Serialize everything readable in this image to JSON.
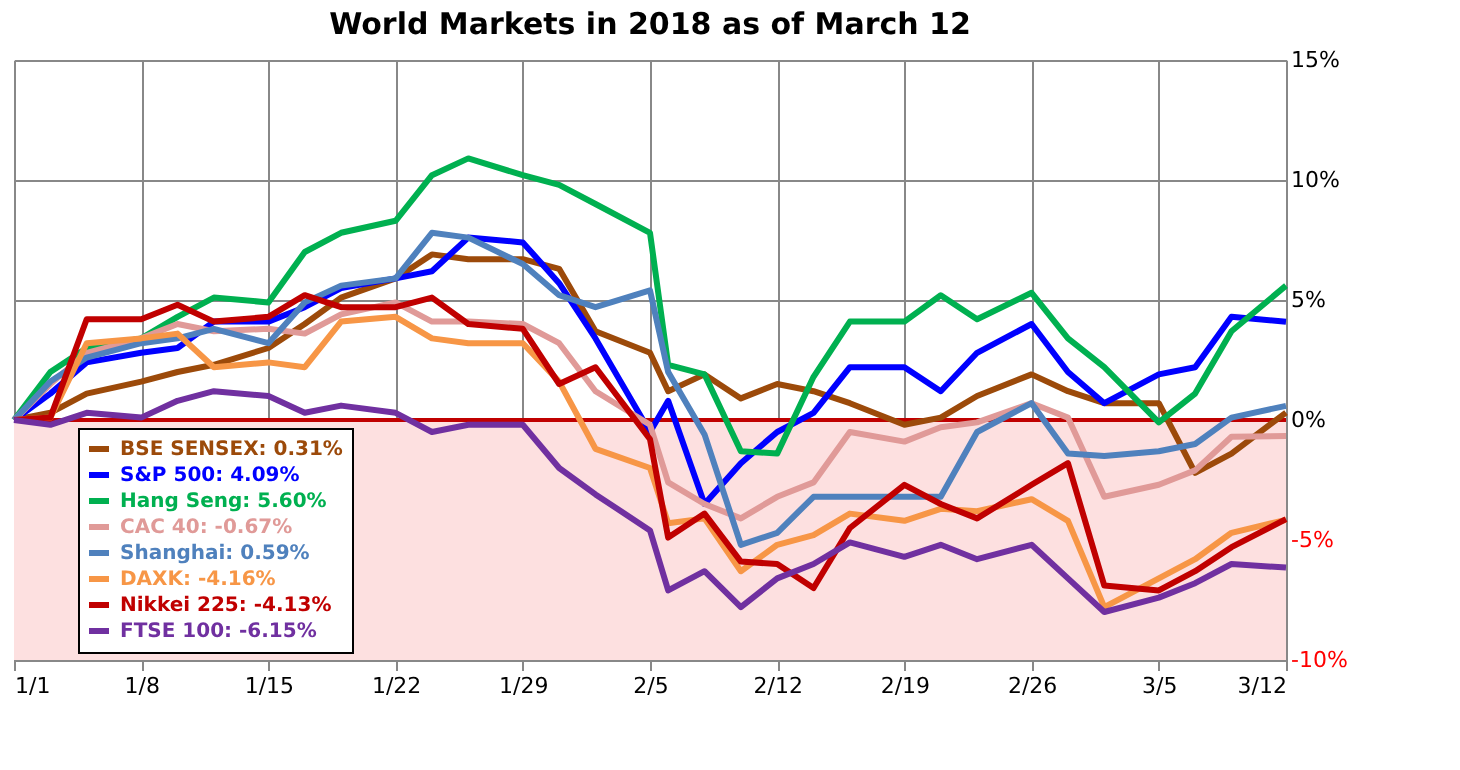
{
  "chart_data": {
    "type": "line",
    "title": "World Markets in 2018 as of March 12",
    "x": [
      "2018-01-01",
      "2018-01-03",
      "2018-01-05",
      "2018-01-08",
      "2018-01-10",
      "2018-01-12",
      "2018-01-15",
      "2018-01-17",
      "2018-01-19",
      "2018-01-22",
      "2018-01-24",
      "2018-01-26",
      "2018-01-29",
      "2018-01-31",
      "2018-02-02",
      "2018-02-05",
      "2018-02-06",
      "2018-02-08",
      "2018-02-10",
      "2018-02-12",
      "2018-02-14",
      "2018-02-16",
      "2018-02-19",
      "2018-02-21",
      "2018-02-23",
      "2018-02-26",
      "2018-02-28",
      "2018-03-02",
      "2018-03-05",
      "2018-03-07",
      "2018-03-09",
      "2018-03-12"
    ],
    "series": [
      {
        "name": "BSE SENSEX: 0.31%",
        "color": "#9c4a0a",
        "values": [
          0,
          0.3,
          1.1,
          1.6,
          2.0,
          2.3,
          3.0,
          4.0,
          5.1,
          5.9,
          6.9,
          6.7,
          6.7,
          6.3,
          3.7,
          2.8,
          1.2,
          1.9,
          0.9,
          1.5,
          1.2,
          0.7,
          -0.2,
          0.1,
          1.0,
          1.9,
          1.2,
          0.7,
          0.7,
          -2.2,
          -1.4,
          0.31
        ]
      },
      {
        "name": "S&P 500: 4.09%",
        "color": "#0000ff",
        "values": [
          0,
          1.1,
          2.4,
          2.8,
          3.0,
          4.1,
          4.1,
          4.7,
          5.5,
          5.9,
          6.2,
          7.6,
          7.4,
          5.7,
          3.4,
          -0.5,
          0.8,
          -3.5,
          -1.8,
          -0.5,
          0.3,
          2.2,
          2.2,
          1.2,
          2.8,
          4.0,
          2.0,
          0.7,
          1.9,
          2.2,
          4.3,
          4.09
        ]
      },
      {
        "name": "Hang Seng: 5.60%",
        "color": "#00b050",
        "values": [
          0,
          2.0,
          3.0,
          3.4,
          4.3,
          5.1,
          4.9,
          7.0,
          7.8,
          8.3,
          10.2,
          10.9,
          10.2,
          9.8,
          9.0,
          7.8,
          2.3,
          1.9,
          -1.3,
          -1.4,
          1.8,
          4.1,
          4.1,
          5.2,
          4.2,
          5.3,
          3.4,
          2.2,
          -0.1,
          1.1,
          3.7,
          5.6
        ]
      },
      {
        "name": "CAC 40: -0.67%",
        "color": "#e09a98",
        "values": [
          0,
          1.5,
          2.8,
          3.4,
          4.0,
          3.7,
          3.8,
          3.6,
          4.4,
          4.9,
          4.1,
          4.1,
          4.0,
          3.2,
          1.2,
          -0.2,
          -2.6,
          -3.5,
          -4.1,
          -3.2,
          -2.6,
          -0.5,
          -0.9,
          -0.3,
          -0.1,
          0.7,
          0.1,
          -3.2,
          -2.7,
          -2.1,
          -0.7,
          -0.67
        ]
      },
      {
        "name": "Shanghai: 0.59%",
        "color": "#4f81bd",
        "values": [
          0,
          1.6,
          2.6,
          3.2,
          3.4,
          3.8,
          3.2,
          4.9,
          5.6,
          5.9,
          7.8,
          7.6,
          6.5,
          5.2,
          4.7,
          5.4,
          2.0,
          -0.6,
          -5.2,
          -4.7,
          -3.2,
          -3.2,
          -3.2,
          -3.2,
          -0.5,
          0.7,
          -1.4,
          -1.5,
          -1.3,
          -1.0,
          0.1,
          0.59
        ]
      },
      {
        "name": "DAXK: -4.16%",
        "color": "#f79646",
        "values": [
          0,
          0.1,
          3.2,
          3.4,
          3.6,
          2.2,
          2.4,
          2.2,
          4.1,
          4.3,
          3.4,
          3.2,
          3.2,
          1.6,
          -1.2,
          -2.0,
          -4.3,
          -4.1,
          -6.3,
          -5.2,
          -4.8,
          -3.9,
          -4.2,
          -3.7,
          -3.8,
          -3.3,
          -4.2,
          -7.8,
          -6.6,
          -5.8,
          -4.7,
          -4.16
        ]
      },
      {
        "name": "Nikkei 225: -4.13%",
        "color": "#c00000",
        "values": [
          0,
          0.1,
          4.2,
          4.2,
          4.8,
          4.1,
          4.3,
          5.2,
          4.7,
          4.7,
          5.1,
          4.0,
          3.8,
          1.5,
          2.2,
          -0.8,
          -4.9,
          -3.9,
          -5.9,
          -6.0,
          -7.0,
          -4.5,
          -2.7,
          -3.5,
          -4.1,
          -2.7,
          -1.8,
          -6.9,
          -7.1,
          -6.3,
          -5.3,
          -4.13
        ]
      },
      {
        "name": "FTSE 100: -6.15%",
        "color": "#7030a0",
        "values": [
          0,
          -0.2,
          0.3,
          0.1,
          0.8,
          1.2,
          1.0,
          0.3,
          0.6,
          0.3,
          -0.5,
          -0.2,
          -0.2,
          -2.0,
          -3.1,
          -4.6,
          -7.1,
          -6.3,
          -7.8,
          -6.6,
          -6.0,
          -5.1,
          -5.7,
          -5.2,
          -5.8,
          -5.2,
          -6.6,
          -8.0,
          -7.4,
          -6.8,
          -6.0,
          -6.15
        ]
      }
    ],
    "xlim": [
      "2018-01-01",
      "2018-03-12"
    ],
    "xticks": [
      {
        "value": "2018-01-01",
        "label": "1/1"
      },
      {
        "value": "2018-01-08",
        "label": "1/8"
      },
      {
        "value": "2018-01-15",
        "label": "1/15"
      },
      {
        "value": "2018-01-22",
        "label": "1/22"
      },
      {
        "value": "2018-01-29",
        "label": "1/29"
      },
      {
        "value": "2018-02-05",
        "label": "2/5"
      },
      {
        "value": "2018-02-12",
        "label": "2/12"
      },
      {
        "value": "2018-02-19",
        "label": "2/19"
      },
      {
        "value": "2018-02-26",
        "label": "2/26"
      },
      {
        "value": "2018-03-05",
        "label": "3/5"
      },
      {
        "value": "2018-03-12",
        "label": "3/12"
      }
    ],
    "ylim": [
      -10,
      15
    ],
    "yticks": [
      {
        "value": -10,
        "label": "-10%"
      },
      {
        "value": -5,
        "label": "-5%"
      },
      {
        "value": 0,
        "label": "0%"
      },
      {
        "value": 5,
        "label": "5%"
      },
      {
        "value": 10,
        "label": "10%"
      },
      {
        "value": 15,
        "label": "15%"
      }
    ],
    "bands": [
      {
        "axis": "y",
        "from": -10,
        "to": 0,
        "color": "#fde0e0"
      }
    ],
    "ref_lines": [
      {
        "axis": "y",
        "value": 0,
        "color": "#c00000"
      }
    ],
    "grid": true,
    "legend": "bottom left",
    "marker": "none",
    "line_style": "solid"
  }
}
